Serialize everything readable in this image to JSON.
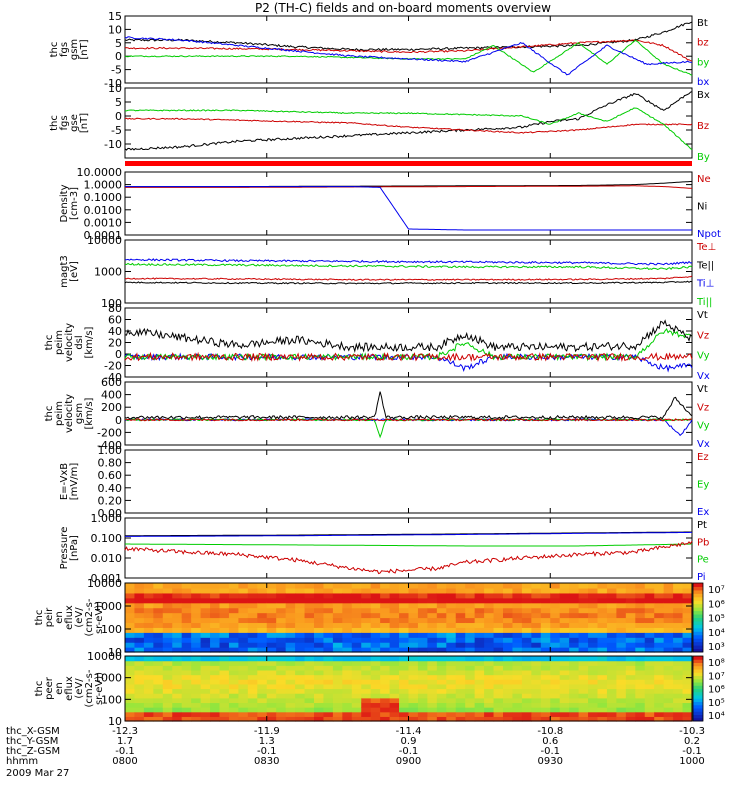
{
  "title": "P2 (TH-C) fields and on-board moments overview",
  "colors": {
    "black": "#000000",
    "red": "#cc0000",
    "green": "#00cc00",
    "blue": "#0000ee"
  },
  "chart_data": [
    {
      "id": "fgs-gsm",
      "type": "line",
      "ylabel_lines": [
        "thc",
        "fgs",
        "gsm",
        "[nT]"
      ],
      "ylim": [
        -10,
        15
      ],
      "yticks": [
        "-10",
        "-5",
        "0",
        "5",
        "10",
        "15"
      ],
      "legend": [
        {
          "label": "Bt",
          "color": "#000000"
        },
        {
          "label": "bz",
          "color": "#cc0000"
        },
        {
          "label": "by",
          "color": "#00cc00"
        },
        {
          "label": "bx",
          "color": "#0000ee"
        }
      ],
      "series": [
        {
          "name": "Bt",
          "color": "#000000",
          "x": [
            0,
            0.1,
            0.2,
            0.3,
            0.4,
            0.5,
            0.6,
            0.7,
            0.8,
            0.9,
            0.95,
            1.0
          ],
          "y": [
            6,
            6,
            5,
            3.5,
            2.5,
            2.5,
            3,
            3.5,
            4,
            6,
            9,
            13
          ],
          "noise": 0.4
        },
        {
          "name": "bz",
          "color": "#cc0000",
          "x": [
            0,
            0.1,
            0.2,
            0.3,
            0.4,
            0.5,
            0.6,
            0.7,
            0.8,
            0.9,
            0.95,
            1.0
          ],
          "y": [
            3,
            3,
            2.8,
            2.5,
            2,
            1.5,
            2,
            3.5,
            5,
            6,
            4,
            -2
          ],
          "noise": 0.3
        },
        {
          "name": "by",
          "color": "#00cc00",
          "x": [
            0,
            0.1,
            0.2,
            0.3,
            0.4,
            0.5,
            0.6,
            0.65,
            0.72,
            0.8,
            0.85,
            0.9,
            0.95,
            1.0
          ],
          "y": [
            0,
            0,
            0,
            0,
            -0.5,
            -1,
            -1,
            4,
            -6,
            5,
            -3,
            6,
            -3,
            -7
          ],
          "noise": 0.2
        },
        {
          "name": "bx",
          "color": "#0000ee",
          "x": [
            0,
            0.1,
            0.2,
            0.3,
            0.4,
            0.5,
            0.6,
            0.7,
            0.78,
            0.85,
            0.92,
            1.0
          ],
          "y": [
            7,
            6,
            4,
            2,
            0,
            -1,
            -2,
            5,
            -7,
            4,
            -3,
            -2
          ],
          "noise": 0.3
        }
      ]
    },
    {
      "id": "fgs-gse",
      "type": "line",
      "ylabel_lines": [
        "thc",
        "fgs",
        "gse",
        "[nT]"
      ],
      "ylim": [
        -15,
        10
      ],
      "yticks": [
        "-10",
        "-5",
        "0",
        "5",
        "10"
      ],
      "legend": [
        {
          "label": "Bx",
          "color": "#000000"
        },
        {
          "label": "Bz",
          "color": "#cc0000"
        },
        {
          "label": "By",
          "color": "#00cc00"
        }
      ],
      "series": [
        {
          "name": "Bx",
          "color": "#000000",
          "x": [
            0,
            0.1,
            0.2,
            0.3,
            0.4,
            0.5,
            0.6,
            0.7,
            0.75,
            0.8,
            0.85,
            0.9,
            0.95,
            1.0
          ],
          "y": [
            -12,
            -11,
            -9,
            -8,
            -7,
            -6,
            -5,
            -4,
            -2,
            -1,
            4,
            8,
            2,
            9
          ],
          "noise": 0.4
        },
        {
          "name": "Bz",
          "color": "#cc0000",
          "x": [
            0,
            0.1,
            0.2,
            0.3,
            0.4,
            0.5,
            0.6,
            0.7,
            0.8,
            0.9,
            1.0
          ],
          "y": [
            -1,
            -1,
            -1.5,
            -2,
            -2.5,
            -4,
            -5,
            -6,
            -5,
            -3,
            -3
          ],
          "noise": 0.2
        },
        {
          "name": "By",
          "color": "#00cc00",
          "x": [
            0,
            0.1,
            0.2,
            0.3,
            0.4,
            0.5,
            0.6,
            0.7,
            0.75,
            0.8,
            0.85,
            0.9,
            0.95,
            1.0
          ],
          "y": [
            2,
            2,
            2,
            1.5,
            1,
            1,
            0.5,
            0,
            -3,
            1,
            -2,
            3,
            -3,
            -12
          ],
          "noise": 0.2
        }
      ]
    },
    {
      "id": "density",
      "type": "line",
      "scale": "log",
      "ylabel_lines": [
        "Density",
        "[cm-3]"
      ],
      "ylim": [
        0.0001,
        10
      ],
      "yticks": [
        "0.0001",
        "0.0010",
        "0.0100",
        "0.1000",
        "1.0000",
        "10.0000"
      ],
      "legend": [
        {
          "label": "Ne",
          "color": "#cc0000"
        },
        {
          "label": "Ni",
          "color": "#000000"
        },
        {
          "label": "Npot",
          "color": "#0000ee"
        }
      ],
      "series": [
        {
          "name": "Ni",
          "color": "#000000",
          "x": [
            0,
            0.2,
            0.4,
            0.6,
            0.8,
            0.9,
            0.95,
            1.0
          ],
          "y": [
            0.7,
            0.7,
            0.75,
            0.8,
            0.85,
            1.0,
            1.3,
            1.8
          ]
        },
        {
          "name": "Ne",
          "color": "#cc0000",
          "x": [
            0,
            0.2,
            0.4,
            0.6,
            0.8,
            0.9,
            0.95,
            1.0
          ],
          "y": [
            0.6,
            0.6,
            0.65,
            0.7,
            0.75,
            0.8,
            0.7,
            0.5
          ]
        },
        {
          "name": "Npot",
          "color": "#0000ee",
          "x": [
            0,
            0.2,
            0.4,
            0.45,
            0.5,
            0.6,
            0.8,
            1.0
          ],
          "y": [
            0.7,
            0.7,
            0.7,
            0.6,
            0.0003,
            0.00025,
            0.00025,
            0.00025
          ]
        }
      ]
    },
    {
      "id": "temperature",
      "type": "line",
      "scale": "log",
      "ylabel_lines": [
        "magt3",
        "[eV]"
      ],
      "ylim": [
        100,
        10000
      ],
      "yticks": [
        "100",
        "1000",
        "10000"
      ],
      "legend": [
        {
          "label": "Te⊥",
          "color": "#cc0000"
        },
        {
          "label": "Te||",
          "color": "#000000"
        },
        {
          "label": "Ti⊥",
          "color": "#0000ee"
        },
        {
          "label": "Ti||",
          "color": "#00cc00"
        }
      ],
      "series": [
        {
          "name": "Ti⊥",
          "color": "#0000ee",
          "x": [
            0,
            0.2,
            0.4,
            0.6,
            0.8,
            0.95,
            1.0
          ],
          "y": [
            2400,
            2200,
            2100,
            2000,
            1900,
            1700,
            2000
          ],
          "noise": 0.03
        },
        {
          "name": "Ti||",
          "color": "#00cc00",
          "x": [
            0,
            0.2,
            0.4,
            0.6,
            0.8,
            0.95,
            1.0
          ],
          "y": [
            1700,
            1600,
            1500,
            1400,
            1400,
            1200,
            1400
          ],
          "noise": 0.03
        },
        {
          "name": "Te⊥",
          "color": "#cc0000",
          "x": [
            0,
            0.2,
            0.4,
            0.6,
            0.8,
            0.95,
            1.0
          ],
          "y": [
            600,
            580,
            550,
            550,
            560,
            600,
            700
          ],
          "noise": 0.02
        },
        {
          "name": "Te||",
          "color": "#000000",
          "x": [
            0,
            0.2,
            0.4,
            0.6,
            0.8,
            0.95,
            1.0
          ],
          "y": [
            450,
            430,
            420,
            430,
            430,
            450,
            480
          ],
          "noise": 0.02
        }
      ]
    },
    {
      "id": "peim-dsl",
      "type": "line",
      "ylabel_lines": [
        "thc",
        "peim",
        "velocity",
        "dsl",
        "[km/s]"
      ],
      "ylim": [
        -40,
        80
      ],
      "yticks": [
        "-40",
        "-20",
        "0",
        "20",
        "40",
        "60",
        "80"
      ],
      "legend": [
        {
          "label": "Vt",
          "color": "#000000"
        },
        {
          "label": "Vz",
          "color": "#cc0000"
        },
        {
          "label": "Vy",
          "color": "#00cc00"
        },
        {
          "label": "Vx",
          "color": "#0000ee"
        }
      ],
      "series": [
        {
          "name": "Vx",
          "color": "#0000ee",
          "x": [
            0,
            0.2,
            0.4,
            0.55,
            0.6,
            0.65,
            0.8,
            0.9,
            0.95,
            1.0
          ],
          "y": [
            -5,
            -5,
            -5,
            -5,
            -25,
            -5,
            -5,
            -5,
            -25,
            -20
          ],
          "noise": 5
        },
        {
          "name": "Vy",
          "color": "#00cc00",
          "x": [
            0,
            0.2,
            0.4,
            0.55,
            0.6,
            0.65,
            0.8,
            0.9,
            0.95,
            1.0
          ],
          "y": [
            -5,
            -5,
            -5,
            -5,
            20,
            -5,
            -5,
            -5,
            40,
            30
          ],
          "noise": 5
        },
        {
          "name": "Vz",
          "color": "#cc0000",
          "x": [
            0,
            0.2,
            0.4,
            0.6,
            0.8,
            1.0
          ],
          "y": [
            -5,
            -5,
            -5,
            -5,
            -5,
            -5
          ],
          "noise": 6
        },
        {
          "name": "Vt",
          "color": "#000000",
          "x": [
            0,
            0.05,
            0.2,
            0.3,
            0.4,
            0.55,
            0.6,
            0.65,
            0.8,
            0.9,
            0.95,
            1.0
          ],
          "y": [
            40,
            35,
            15,
            25,
            12,
            12,
            35,
            12,
            12,
            15,
            55,
            25
          ],
          "noise": 7
        }
      ]
    },
    {
      "id": "peim-gsm",
      "type": "line",
      "ylabel_lines": [
        "thc",
        "peim",
        "velocity",
        "gsm",
        "[km/s]"
      ],
      "ylim": [
        -400,
        600
      ],
      "yticks": [
        "-400",
        "-200",
        "0",
        "200",
        "400",
        "600"
      ],
      "legend": [
        {
          "label": "Vt",
          "color": "#000000"
        },
        {
          "label": "Vz",
          "color": "#cc0000"
        },
        {
          "label": "Vy",
          "color": "#00cc00"
        },
        {
          "label": "Vx",
          "color": "#0000ee"
        }
      ],
      "series": [
        {
          "name": "Vx",
          "color": "#0000ee",
          "x": [
            0,
            0.5,
            0.95,
            0.98,
            1.0
          ],
          "y": [
            0,
            0,
            0,
            -250,
            0
          ],
          "noise": 15
        },
        {
          "name": "Vy",
          "color": "#00cc00",
          "x": [
            0,
            0.2,
            0.4,
            0.44,
            0.45,
            0.46,
            0.5,
            1.0
          ],
          "y": [
            0,
            0,
            0,
            0,
            -280,
            0,
            0,
            0
          ],
          "noise": 15
        },
        {
          "name": "Vz",
          "color": "#cc0000",
          "x": [
            0,
            0.5,
            1.0
          ],
          "y": [
            0,
            0,
            0
          ],
          "noise": 15
        },
        {
          "name": "Vt",
          "color": "#000000",
          "x": [
            0,
            0.2,
            0.4,
            0.44,
            0.45,
            0.46,
            0.5,
            0.95,
            0.97,
            1.0
          ],
          "y": [
            40,
            40,
            40,
            40,
            450,
            40,
            40,
            40,
            350,
            60
          ],
          "noise": 25
        }
      ]
    },
    {
      "id": "efield",
      "type": "line",
      "ylabel_lines": [
        "E=-VxB",
        "[mV/m]"
      ],
      "ylim": [
        0,
        1
      ],
      "yticks": [
        "0.00",
        "0.20",
        "0.40",
        "0.60",
        "0.80",
        "1.00"
      ],
      "legend": [
        {
          "label": "Ez",
          "color": "#cc0000"
        },
        {
          "label": "Ey",
          "color": "#00cc00"
        },
        {
          "label": "Ex",
          "color": "#0000ee"
        }
      ],
      "series": []
    },
    {
      "id": "pressure",
      "type": "line",
      "scale": "log",
      "ylabel_lines": [
        "Pressure",
        "[nPa]"
      ],
      "ylim": [
        0.001,
        1
      ],
      "yticks": [
        "0.001",
        "0.010",
        "0.100",
        "1.000"
      ],
      "legend": [
        {
          "label": "Pt",
          "color": "#000000"
        },
        {
          "label": "Pb",
          "color": "#cc0000"
        },
        {
          "label": "Pe",
          "color": "#00cc00"
        },
        {
          "label": "Pi",
          "color": "#0000ee"
        }
      ],
      "series": [
        {
          "name": "Pt",
          "color": "#000000",
          "x": [
            0,
            0.3,
            0.6,
            0.8,
            1.0
          ],
          "y": [
            0.13,
            0.14,
            0.16,
            0.18,
            0.2
          ]
        },
        {
          "name": "Pi",
          "color": "#0000ee",
          "x": [
            0,
            0.3,
            0.6,
            0.8,
            1.0
          ],
          "y": [
            0.12,
            0.13,
            0.15,
            0.17,
            0.19
          ]
        },
        {
          "name": "Pe",
          "color": "#00cc00",
          "x": [
            0,
            0.3,
            0.6,
            0.8,
            1.0
          ],
          "y": [
            0.05,
            0.045,
            0.04,
            0.04,
            0.05
          ]
        },
        {
          "name": "Pb",
          "color": "#cc0000",
          "x": [
            0,
            0.1,
            0.2,
            0.3,
            0.4,
            0.45,
            0.55,
            0.6,
            0.7,
            0.8,
            0.9,
            1.0
          ],
          "y": [
            0.03,
            0.02,
            0.015,
            0.008,
            0.003,
            0.002,
            0.003,
            0.006,
            0.01,
            0.015,
            0.02,
            0.06
          ],
          "noise": 0.1
        }
      ]
    },
    {
      "id": "peir-spec",
      "type": "heatmap",
      "ylabel_lines": [
        "thc",
        "peir",
        "en",
        "eflux",
        "(eV/",
        "(cm2-s-",
        "sr-eV))"
      ],
      "ylim": [
        10,
        10000
      ],
      "yticks": [
        "10",
        "100",
        "1000",
        "10000"
      ],
      "colorbar_ticks": [
        "10³",
        "10⁴",
        "10⁵",
        "10⁶",
        "10⁷"
      ]
    },
    {
      "id": "peer-spec",
      "type": "heatmap",
      "ylabel_lines": [
        "thc",
        "peer",
        "en",
        "eflux",
        "(eV/",
        "(cm2-s-",
        "sr-eV))"
      ],
      "ylim": [
        10,
        10000
      ],
      "yticks": [
        "10",
        "100",
        "1000",
        "10000"
      ],
      "colorbar_ticks": [
        "10⁴",
        "10⁵",
        "10⁶",
        "10⁷",
        "10⁸"
      ]
    }
  ],
  "x_axis": {
    "rows": [
      {
        "label": "thc_X-GSM",
        "values": [
          "-12.3",
          "-11.9",
          "-11.4",
          "-10.8",
          "-10.3"
        ]
      },
      {
        "label": "thc_Y-GSM",
        "values": [
          "1.7",
          "1.3",
          "0.9",
          "0.6",
          "0.2"
        ]
      },
      {
        "label": "thc_Z-GSM",
        "values": [
          "-0.1",
          "-0.1",
          "-0.1",
          "-0.1",
          "-0.1"
        ]
      },
      {
        "label": "hhmm",
        "values": [
          "0800",
          "0830",
          "0900",
          "0930",
          "1000"
        ]
      }
    ],
    "date": "2009 Mar 27"
  }
}
